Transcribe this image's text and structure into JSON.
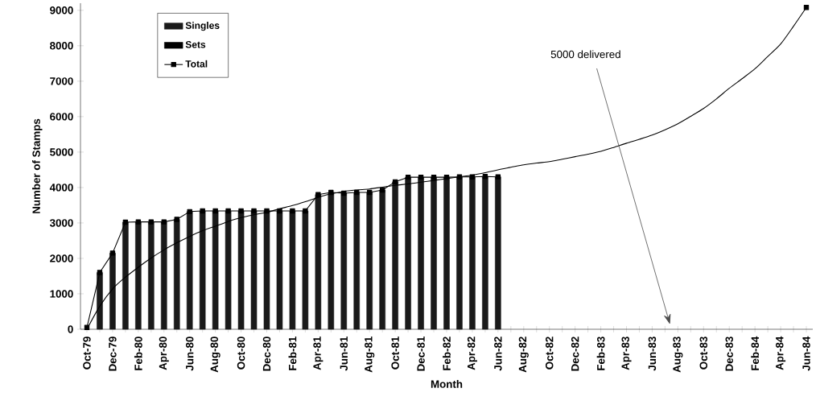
{
  "chart_data": {
    "type": "bar",
    "stacked": true,
    "xlabel": "Month",
    "ylabel": "Number of Stamps",
    "categories": [
      "Oct-79",
      null,
      "Dec-79",
      null,
      "Feb-80",
      null,
      "Apr-80",
      null,
      "Jun-80",
      null,
      "Aug-80",
      null,
      "Oct-80",
      null,
      "Dec-80",
      null,
      "Feb-81",
      null,
      "Apr-81",
      null,
      "Jun-81",
      null,
      "Aug-81",
      null,
      "Oct-81",
      null,
      "Dec-81",
      null,
      "Feb-82",
      null,
      "Apr-82",
      null,
      "Jun-82",
      null,
      "Aug-82",
      null,
      "Oct-82",
      null,
      "Dec-82",
      null,
      "Feb-83",
      null,
      "Apr-83",
      null,
      "Jun-83",
      null,
      "Aug-83",
      null,
      "Oct-83",
      null,
      "Dec-83",
      null,
      "Feb-84",
      null,
      "Apr-84",
      null,
      "Jun-84"
    ],
    "series": [
      {
        "name": "Singles",
        "color": "#1a1a1a",
        "values": [
          null,
          1600,
          2150,
          3020,
          3030,
          3030,
          3030,
          3100,
          3320,
          3340,
          3340,
          3340,
          3340,
          3340,
          3340,
          3340,
          3340,
          3340,
          3800,
          3860,
          3840,
          3860,
          3860,
          3930,
          4160,
          4290,
          4290,
          4290,
          4290,
          4300,
          4300,
          4310,
          4300,
          null,
          null,
          null,
          null,
          null,
          null,
          null,
          null,
          null,
          null,
          null,
          null,
          null,
          null,
          null,
          null,
          null,
          null,
          null,
          null,
          null,
          null,
          null,
          null
        ]
      },
      {
        "name": "Sets",
        "color": "#000000",
        "values": [
          null,
          null,
          null,
          null,
          null,
          null,
          null,
          null,
          null,
          null,
          null,
          null,
          null,
          null,
          null,
          null,
          null,
          null,
          null,
          null,
          null,
          null,
          null,
          null,
          null,
          null,
          null,
          null,
          null,
          null,
          null,
          null,
          null,
          null,
          null,
          null,
          null,
          null,
          null,
          null,
          null,
          null,
          null,
          null,
          null,
          null,
          null,
          null,
          null,
          null,
          null,
          null,
          null,
          null,
          null,
          null,
          null
        ]
      },
      {
        "name": "Total",
        "type": "line",
        "marker": "square",
        "color": "#000000",
        "values": [
          50,
          1600,
          2150,
          3020,
          3030,
          3030,
          3030,
          3100,
          3320,
          3340,
          3340,
          3340,
          3340,
          3340,
          3340,
          3340,
          3340,
          3340,
          3800,
          3860,
          3840,
          3860,
          3860,
          3930,
          4160,
          4290,
          4290,
          4290,
          4290,
          4300,
          4300,
          4310,
          4300,
          null,
          null,
          null,
          null,
          null,
          null,
          null,
          null,
          null,
          null,
          null,
          null,
          null,
          null,
          null,
          null,
          null,
          null,
          null,
          null,
          null,
          null,
          null,
          9080
        ]
      },
      {
        "type": "line",
        "marker": "none",
        "color": "#000000",
        "values": [
          0,
          650,
          1140,
          1470,
          1750,
          2010,
          2240,
          2440,
          2620,
          2780,
          2910,
          3040,
          3150,
          3230,
          3300,
          3400,
          3490,
          3600,
          3720,
          3820,
          3890,
          3930,
          3960,
          4010,
          4060,
          4100,
          4150,
          4200,
          4250,
          4300,
          4350,
          4420,
          4500,
          4570,
          4640,
          4690,
          4730,
          4800,
          4870,
          4940,
          5020,
          5130,
          5250,
          5360,
          5480,
          5630,
          5800,
          6010,
          6230,
          6500,
          6800,
          7070,
          7350,
          7700,
          8050,
          8550,
          9080
        ]
      }
    ],
    "ylim": [
      0,
      9200
    ],
    "yticks": [
      0,
      1000,
      2000,
      3000,
      4000,
      5000,
      6000,
      7000,
      8000,
      9000
    ],
    "legend": "top left",
    "annotations": [
      "5000 delivered"
    ]
  }
}
